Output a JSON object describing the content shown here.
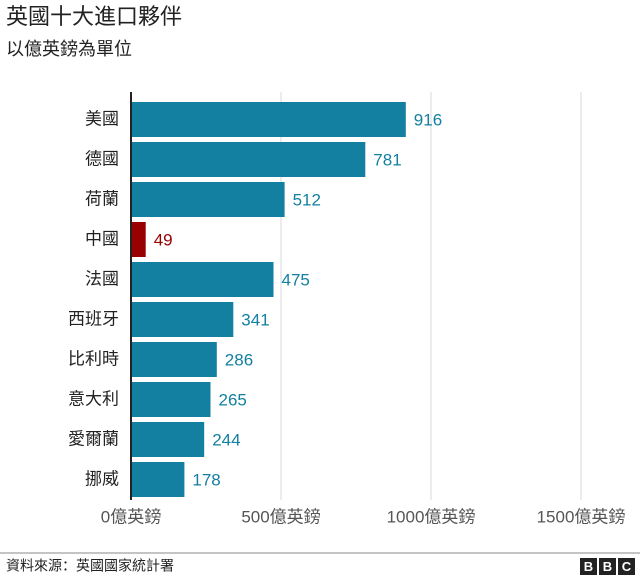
{
  "chart_data": {
    "type": "barh",
    "title": "英國十大進口夥伴",
    "subtitle": "以億英鎊為單位",
    "categories": [
      "美國",
      "德國",
      "荷蘭",
      "中國",
      "法國",
      "西班牙",
      "比利時",
      "意大利",
      "愛爾蘭",
      "挪威"
    ],
    "values": [
      916,
      781,
      512,
      49,
      475,
      341,
      286,
      265,
      244,
      178
    ],
    "colors": [
      "#1380a1",
      "#1380a1",
      "#1380a1",
      "#990000",
      "#1380a1",
      "#1380a1",
      "#1380a1",
      "#1380a1",
      "#1380a1",
      "#1380a1"
    ],
    "xlim": [
      0,
      1500
    ],
    "xticks": [
      {
        "value": 0,
        "label": "0億英鎊"
      },
      {
        "value": 500,
        "label": "500億英鎊"
      },
      {
        "value": 1000,
        "label": "1000億英鎊"
      },
      {
        "value": 1500,
        "label": "1500億英鎊"
      }
    ],
    "grid": true,
    "source": "資料來源：英國國家統計署",
    "logo": [
      "B",
      "B",
      "C"
    ]
  }
}
